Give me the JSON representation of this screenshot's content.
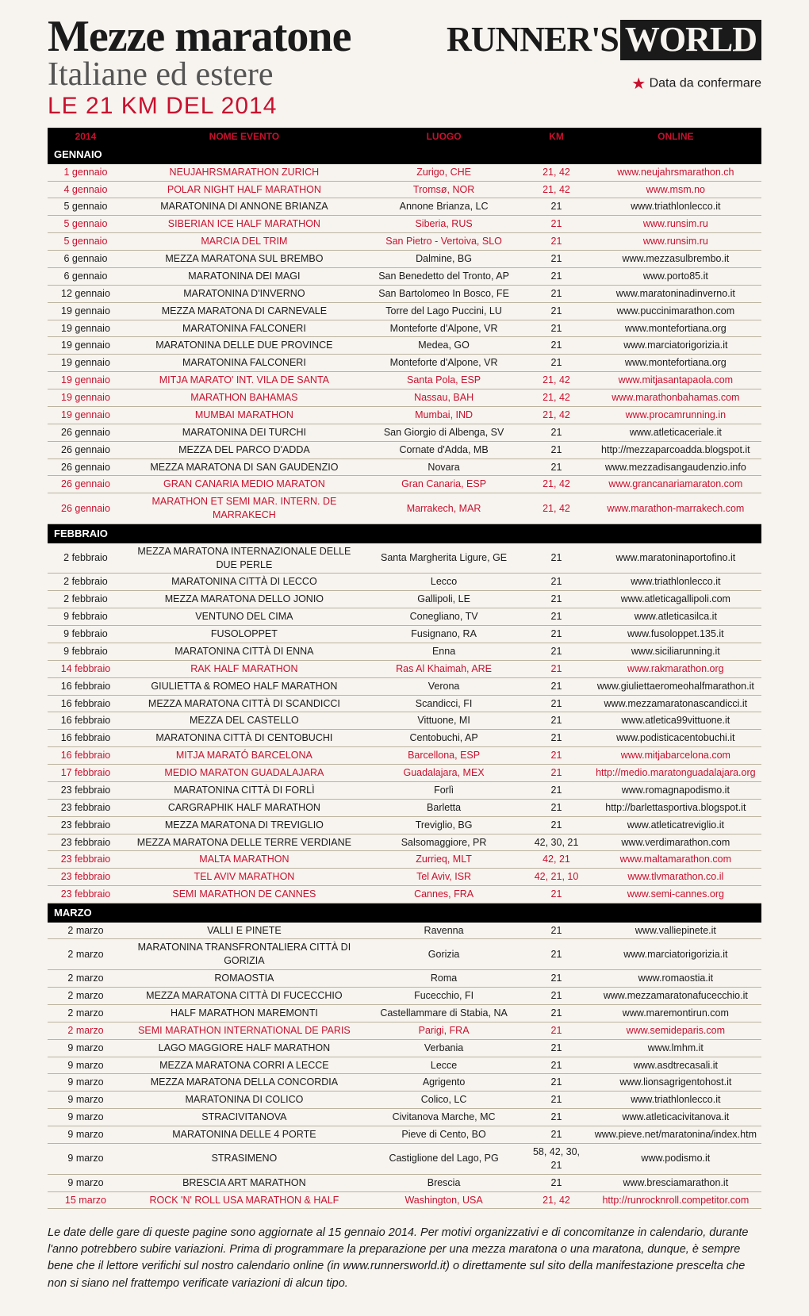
{
  "header": {
    "title1": "Mezze maratone",
    "title2": "Italiane ed estere",
    "title3": "LE 21 KM DEL 2014",
    "brand_runners": "RUNNER'S",
    "brand_world": "WORLD",
    "confirm_star": "★",
    "confirm_text": "Data da confermare"
  },
  "columns": {
    "c1": "2014",
    "c2": "NOME EVENTO",
    "c3": "LUOGO",
    "c4": "KM",
    "c5": "ONLINE"
  },
  "months": [
    {
      "name": "GENNAIO",
      "rows": [
        {
          "date": "1 gennaio",
          "event": "NEUJAHRSMARATHON ZURICH",
          "place": "Zurigo, CHE",
          "km": "21, 42",
          "url": "www.neujahrsmarathon.ch",
          "abroad": true
        },
        {
          "date": "4 gennaio",
          "event": "POLAR NIGHT HALF MARATHON",
          "place": "Tromsø, NOR",
          "km": "21, 42",
          "url": "www.msm.no",
          "abroad": true
        },
        {
          "date": "5 gennaio",
          "event": "MARATONINA DI ANNONE BRIANZA",
          "place": "Annone Brianza, LC",
          "km": "21",
          "url": "www.triathlonlecco.it",
          "abroad": false
        },
        {
          "date": "5 gennaio",
          "event": "SIBERIAN ICE HALF MARATHON",
          "place": "Siberia, RUS",
          "km": "21",
          "url": "www.runsim.ru",
          "abroad": true
        },
        {
          "date": "5 gennaio",
          "event": "MARCIA DEL TRIM",
          "place": "San Pietro - Vertoiva, SLO",
          "km": "21",
          "url": "www.runsim.ru",
          "abroad": true
        },
        {
          "date": "6 gennaio",
          "event": "MEZZA MARATONA SUL BREMBO",
          "place": "Dalmine, BG",
          "km": "21",
          "url": "www.mezzasulbrembo.it",
          "abroad": false
        },
        {
          "date": "6 gennaio",
          "event": "MARATONINA DEI MAGI",
          "place": "San Benedetto del Tronto, AP",
          "km": "21",
          "url": "www.porto85.it",
          "abroad": false
        },
        {
          "date": "12 gennaio",
          "event": "MARATONINA D'INVERNO",
          "place": "San Bartolomeo In Bosco, FE",
          "km": "21",
          "url": "www.maratoninadinverno.it",
          "abroad": false
        },
        {
          "date": "19 gennaio",
          "event": "MEZZA MARATONA DI CARNEVALE",
          "place": "Torre del Lago Puccini, LU",
          "km": "21",
          "url": "www.puccinimarathon.com",
          "abroad": false
        },
        {
          "date": "19 gennaio",
          "event": "MARATONINA FALCONERI",
          "place": "Monteforte d'Alpone, VR",
          "km": "21",
          "url": "www.montefortiana.org",
          "abroad": false
        },
        {
          "date": "19 gennaio",
          "event": "MARATONINA DELLE DUE PROVINCE",
          "place": "Medea, GO",
          "km": "21",
          "url": "www.marciatorigorizia.it",
          "abroad": false
        },
        {
          "date": "19 gennaio",
          "event": "MARATONINA FALCONERI",
          "place": "Monteforte d'Alpone, VR",
          "km": "21",
          "url": "www.montefortiana.org",
          "abroad": false
        },
        {
          "date": "19 gennaio",
          "event": "MITJA MARATO' INT. VILA DE SANTA",
          "place": "Santa Pola, ESP",
          "km": "21, 42",
          "url": "www.mitjasantapaola.com",
          "abroad": true
        },
        {
          "date": "19 gennaio",
          "event": "MARATHON BAHAMAS",
          "place": "Nassau, BAH",
          "km": "21, 42",
          "url": "www.marathonbahamas.com",
          "abroad": true
        },
        {
          "date": "19 gennaio",
          "event": "MUMBAI MARATHON",
          "place": "Mumbai, IND",
          "km": "21, 42",
          "url": "www.procamrunning.in",
          "abroad": true
        },
        {
          "date": "26 gennaio",
          "event": "MARATONINA DEI TURCHI",
          "place": "San Giorgio di Albenga, SV",
          "km": "21",
          "url": "www.atleticaceriale.it",
          "abroad": false
        },
        {
          "date": "26 gennaio",
          "event": "MEZZA DEL PARCO D'ADDA",
          "place": "Cornate d'Adda, MB",
          "km": "21",
          "url": "http://mezzaparcoadda.blogspot.it",
          "abroad": false
        },
        {
          "date": "26 gennaio",
          "event": "MEZZA MARATONA DI SAN GAUDENZIO",
          "place": "Novara",
          "km": "21",
          "url": "www.mezzadisangaudenzio.info",
          "abroad": false
        },
        {
          "date": "26 gennaio",
          "event": "GRAN CANARIA MEDIO MARATON",
          "place": "Gran Canaria, ESP",
          "km": "21, 42",
          "url": "www.grancanariamaraton.com",
          "abroad": true
        },
        {
          "date": "26 gennaio",
          "event": "MARATHON ET SEMI MAR. INTERN. DE MARRAKECH",
          "place": "Marrakech, MAR",
          "km": "21, 42",
          "url": "www.marathon-marrakech.com",
          "abroad": true
        }
      ]
    },
    {
      "name": "FEBBRAIO",
      "rows": [
        {
          "date": "2 febbraio",
          "event": "MEZZA MARATONA INTERNAZIONALE DELLE DUE PERLE",
          "place": "Santa Margherita Ligure, GE",
          "km": "21",
          "url": "www.maratoninaportofino.it",
          "abroad": false
        },
        {
          "date": "2 febbraio",
          "event": "MARATONINA CITTÀ DI LECCO",
          "place": "Lecco",
          "km": "21",
          "url": "www.triathlonlecco.it",
          "abroad": false
        },
        {
          "date": "2 febbraio",
          "event": "MEZZA MARATONA DELLO JONIO",
          "place": "Gallipoli, LE",
          "km": "21",
          "url": "www.atleticagallipoli.com",
          "abroad": false
        },
        {
          "date": "9 febbraio",
          "event": "VENTUNO DEL CIMA",
          "place": "Conegliano, TV",
          "km": "21",
          "url": "www.atleticasilca.it",
          "abroad": false
        },
        {
          "date": "9 febbraio",
          "event": "FUSOLOPPET",
          "place": "Fusignano, RA",
          "km": "21",
          "url": "www.fusoloppet.135.it",
          "abroad": false
        },
        {
          "date": "9 febbraio",
          "event": "MARATONINA CITTÀ DI ENNA",
          "place": "Enna",
          "km": "21",
          "url": "www.siciliarunning.it",
          "abroad": false
        },
        {
          "date": "14 febbraio",
          "event": "RAK HALF MARATHON",
          "place": "Ras Al Khaimah, ARE",
          "km": "21",
          "url": "www.rakmarathon.org",
          "abroad": true
        },
        {
          "date": "16 febbraio",
          "event": "GIULIETTA & ROMEO HALF MARATHON",
          "place": "Verona",
          "km": "21",
          "url": "www.giuliettaeromeohalfmarathon.it",
          "abroad": false
        },
        {
          "date": "16 febbraio",
          "event": "MEZZA MARATONA CITTÀ DI SCANDICCI",
          "place": "Scandicci, FI",
          "km": "21",
          "url": "www.mezzamaratonascandicci.it",
          "abroad": false
        },
        {
          "date": "16 febbraio",
          "event": "MEZZA DEL CASTELLO",
          "place": "Vittuone, MI",
          "km": "21",
          "url": "www.atletica99vittuone.it",
          "abroad": false
        },
        {
          "date": "16 febbraio",
          "event": "MARATONINA CITTÀ DI CENTOBUCHI",
          "place": "Centobuchi, AP",
          "km": "21",
          "url": "www.podisticacentobuchi.it",
          "abroad": false
        },
        {
          "date": "16 febbraio",
          "event": "MITJA MARATÓ BARCELONA",
          "place": "Barcellona, ESP",
          "km": "21",
          "url": "www.mitjabarcelona.com",
          "abroad": true
        },
        {
          "date": "17 febbraio",
          "event": "MEDIO MARATON GUADALAJARA",
          "place": "Guadalajara, MEX",
          "km": "21",
          "url": "http://medio.maratonguadalajara.org",
          "abroad": true
        },
        {
          "date": "23 febbraio",
          "event": "MARATONINA CITTÀ DI FORLÌ",
          "place": "Forlì",
          "km": "21",
          "url": "www.romagnapodismo.it",
          "abroad": false
        },
        {
          "date": "23 febbraio",
          "event": "CARGRAPHIK HALF MARATHON",
          "place": "Barletta",
          "km": "21",
          "url": "http://barlettasportiva.blogspot.it",
          "abroad": false
        },
        {
          "date": "23 febbraio",
          "event": "MEZZA MARATONA DI TREVIGLIO",
          "place": "Treviglio, BG",
          "km": "21",
          "url": "www.atleticatreviglio.it",
          "abroad": false
        },
        {
          "date": "23 febbraio",
          "event": "MEZZA MARATONA DELLE TERRE VERDIANE",
          "place": "Salsomaggiore, PR",
          "km": "42, 30, 21",
          "url": "www.verdimarathon.com",
          "abroad": false
        },
        {
          "date": "23 febbraio",
          "event": "MALTA MARATHON",
          "place": "Zurrieq, MLT",
          "km": "42, 21",
          "url": "www.maltamarathon.com",
          "abroad": true
        },
        {
          "date": "23 febbraio",
          "event": "TEL AVIV MARATHON",
          "place": "Tel Aviv, ISR",
          "km": "42, 21, 10",
          "url": "www.tlvmarathon.co.il",
          "abroad": true
        },
        {
          "date": "23 febbraio",
          "event": "SEMI MARATHON DE CANNES",
          "place": "Cannes, FRA",
          "km": "21",
          "url": "www.semi-cannes.org",
          "abroad": true
        }
      ]
    },
    {
      "name": "MARZO",
      "rows": [
        {
          "date": "2 marzo",
          "event": "VALLI E PINETE",
          "place": "Ravenna",
          "km": "21",
          "url": "www.valliepinete.it",
          "abroad": false
        },
        {
          "date": "2 marzo",
          "event": "MARATONINA TRANSFRONTALIERA CITTÀ DI GORIZIA",
          "place": "Gorizia",
          "km": "21",
          "url": "www.marciatorigorizia.it",
          "abroad": false
        },
        {
          "date": "2 marzo",
          "event": "ROMAOSTIA",
          "place": "Roma",
          "km": "21",
          "url": "www.romaostia.it",
          "abroad": false
        },
        {
          "date": "2 marzo",
          "event": "MEZZA MARATONA CITTÀ DI FUCECCHIO",
          "place": "Fucecchio, FI",
          "km": "21",
          "url": "www.mezzamaratonafucecchio.it",
          "abroad": false
        },
        {
          "date": "2 marzo",
          "event": "HALF MARATHON MAREMONTI",
          "place": "Castellammare di Stabia, NA",
          "km": "21",
          "url": "www.maremontirun.com",
          "abroad": false
        },
        {
          "date": "2 marzo",
          "event": "SEMI MARATHON INTERNATIONAL DE PARIS",
          "place": "Parigi, FRA",
          "km": "21",
          "url": "www.semideparis.com",
          "abroad": true
        },
        {
          "date": "9 marzo",
          "event": "LAGO MAGGIORE HALF MARATHON",
          "place": "Verbania",
          "km": "21",
          "url": "www.lmhm.it",
          "abroad": false
        },
        {
          "date": "9 marzo",
          "event": "MEZZA MARATONA CORRI A LECCE",
          "place": "Lecce",
          "km": "21",
          "url": "www.asdtrecasali.it",
          "abroad": false
        },
        {
          "date": "9 marzo",
          "event": "MEZZA MARATONA DELLA CONCORDIA",
          "place": "Agrigento",
          "km": "21",
          "url": "www.lionsagrigentohost.it",
          "abroad": false
        },
        {
          "date": "9 marzo",
          "event": "MARATONINA DI COLICO",
          "place": "Colico, LC",
          "km": "21",
          "url": "www.triathlonlecco.it",
          "abroad": false
        },
        {
          "date": "9 marzo",
          "event": "STRACIVITANOVA",
          "place": "Civitanova Marche, MC",
          "km": "21",
          "url": "www.atleticacivitanova.it",
          "abroad": false
        },
        {
          "date": "9 marzo",
          "event": "MARATONINA DELLE 4 PORTE",
          "place": "Pieve di Cento, BO",
          "km": "21",
          "url": "www.pieve.net/maratonina/index.htm",
          "abroad": false
        },
        {
          "date": "9 marzo",
          "event": "STRASIMENO",
          "place": "Castiglione del Lago, PG",
          "km": "58, 42, 30, 21",
          "url": "www.podismo.it",
          "abroad": false
        },
        {
          "date": "9 marzo",
          "event": "BRESCIA ART MARATHON",
          "place": "Brescia",
          "km": "21",
          "url": "www.bresciamarathon.it",
          "abroad": false
        },
        {
          "date": "15 marzo",
          "event": "ROCK 'N' ROLL USA MARATHON & HALF",
          "place": "Washington, USA",
          "km": "21, 42",
          "url": "http://runrocknroll.competitor.com",
          "abroad": true
        }
      ]
    }
  ],
  "footer": "Le date delle gare di queste pagine sono aggiornate al 15 gennaio 2014. Per motivi organizzativi e di concomitanze in calendario, durante l'anno potrebbero subire variazioni. Prima di programmare la preparazione per una mezza maratona o una maratona, dunque, è sempre bene che il lettore verifichi sul nostro calendario online (in www.runnersworld.it) o direttamente sul sito della manifestazione prescelta che non si siano nel frattempo verificate variazioni di alcun tipo."
}
